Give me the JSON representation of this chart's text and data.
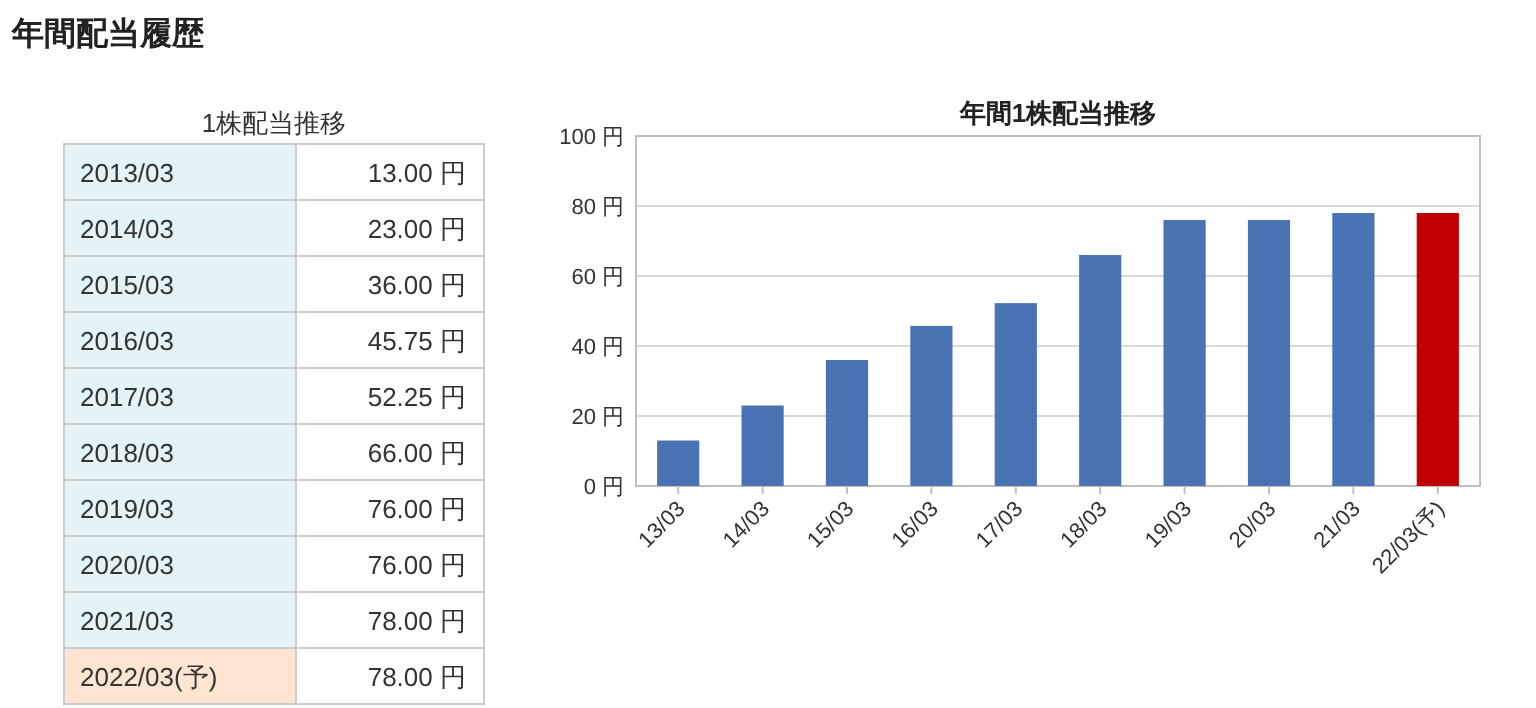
{
  "chart_data": [
    {
      "type": "other",
      "title": "年間配当履歴",
      "subtitle": "1株配当推移",
      "annotations": [
        "2013/03",
        "13.00 円",
        "2014/03",
        "23.00 円",
        "2015/03",
        "36.00 円",
        "2016/03",
        "45.75 円",
        "2017/03",
        "52.25 円",
        "2018/03",
        "66.00 円",
        "2019/03",
        "76.00 円",
        "2020/03",
        "76.00 円",
        "2021/03",
        "78.00 円",
        "2022/03(予)",
        "78.00 円"
      ]
    },
    {
      "type": "bar",
      "title": "年間1株配当推移",
      "categories": [
        "13/03",
        "14/03",
        "15/03",
        "16/03",
        "17/03",
        "18/03",
        "19/03",
        "20/03",
        "21/03",
        "22/03(予)"
      ],
      "values": [
        13,
        23,
        36,
        45.75,
        52.25,
        66,
        76,
        76,
        78,
        78
      ],
      "colors": [
        "#4a73b4",
        "#4a73b4",
        "#4a73b4",
        "#4a73b4",
        "#4a73b4",
        "#4a73b4",
        "#4a73b4",
        "#4a73b4",
        "#4a73b4",
        "#c00000"
      ],
      "ylim": [
        0,
        100
      ],
      "yticks": [
        {
          "value": 0,
          "label": "0 円"
        },
        {
          "value": 20,
          "label": "20 円"
        },
        {
          "value": 40,
          "label": "40 円"
        },
        {
          "value": 60,
          "label": "60 円"
        },
        {
          "value": 80,
          "label": "80 円"
        },
        {
          "value": 100,
          "label": "100 円"
        }
      ],
      "grid": "y"
    }
  ]
}
